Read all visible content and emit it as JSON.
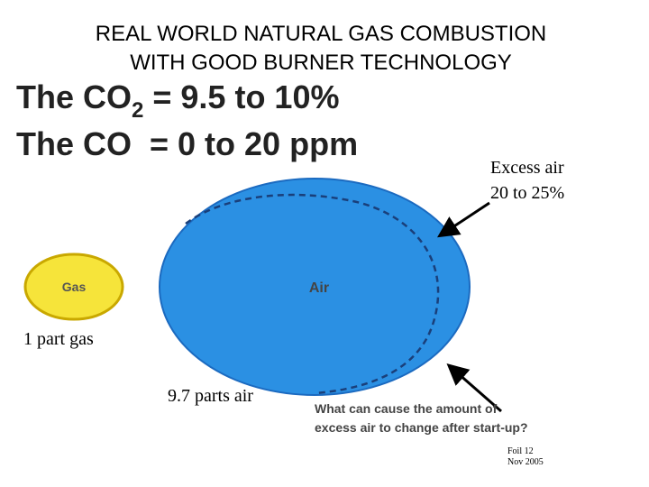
{
  "header": {
    "title_lines": [
      "REAL WORLD NATURAL GAS COMBUSTION",
      "WITH GOOD BURNER TECHNOLOGY"
    ]
  },
  "headline": {
    "co2": {
      "prefix": "The CO",
      "subscript": "2",
      "suffix": " = 9.5 to 10%"
    },
    "co": "The CO  = 0 to 20 ppm"
  },
  "diagram": {
    "gas_label": "Gas",
    "air_label": "Air",
    "gas_caption": "1 part gas",
    "air_caption": "9.7 parts air",
    "excess_air": [
      "Excess air",
      "20 to 25%"
    ],
    "question": [
      "What can cause the amount of",
      "excess air to change after start-up?"
    ]
  },
  "footer": {
    "foil": "Foil 12",
    "date": "Nov 2005"
  }
}
